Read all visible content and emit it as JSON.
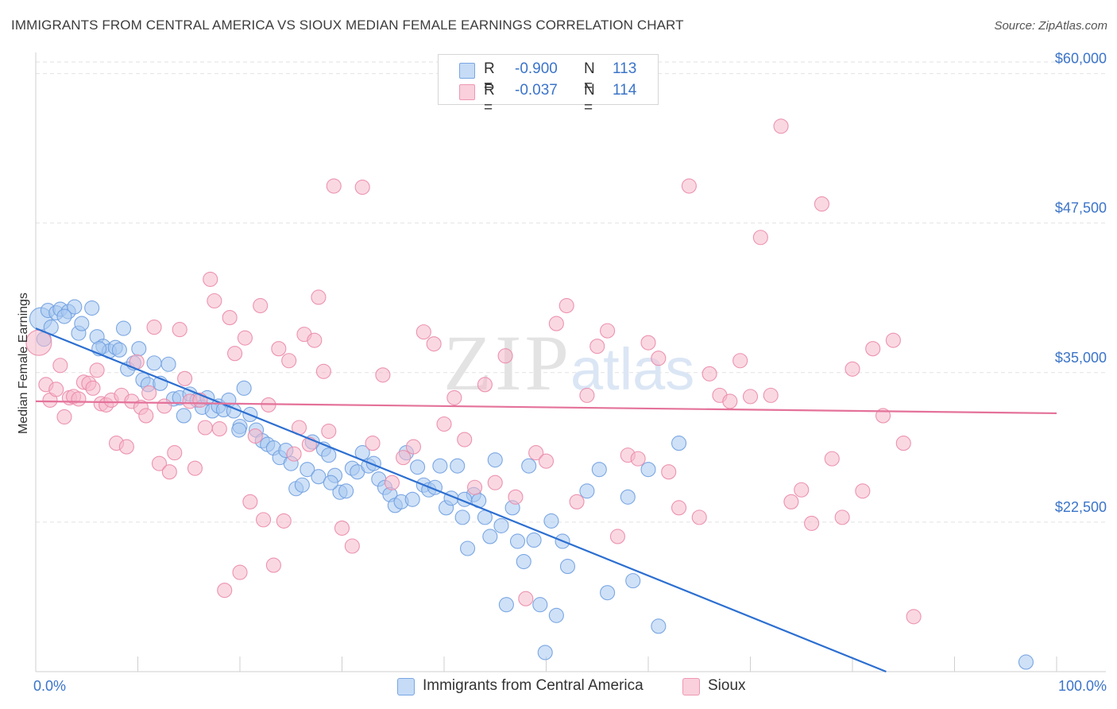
{
  "title": "IMMIGRANTS FROM CENTRAL AMERICA VS SIOUX MEDIAN FEMALE EARNINGS CORRELATION CHART",
  "source": "Source: ZipAtlas.com",
  "watermark": {
    "zip": "ZIP",
    "atlas": "atlas"
  },
  "legend": {
    "rows": [
      {
        "r_label": "R =",
        "r_value": "-0.900",
        "n_label": "N =",
        "n_value": "113",
        "color": "#a8c8f0"
      },
      {
        "r_label": "R =",
        "r_value": "-0.037",
        "n_label": "N =",
        "n_value": "114",
        "color": "#f5b8cb"
      }
    ]
  },
  "bottom_legend": [
    {
      "label": "Immigrants from Central America",
      "color": "#a8c8f0"
    },
    {
      "label": "Sioux",
      "color": "#f5b8cb"
    }
  ],
  "chart_data": {
    "type": "scatter",
    "ylabel": "Median Female Earnings",
    "x_tick_labels": [
      "0.0%",
      "100.0%"
    ],
    "y_ticks": [
      {
        "value": 22500,
        "label": "$22,500"
      },
      {
        "value": 35000,
        "label": "$35,000"
      },
      {
        "value": 47500,
        "label": "$47,500"
      },
      {
        "value": 60000,
        "label": "$60,000"
      }
    ],
    "xlim": [
      0,
      100
    ],
    "ylim": [
      10000,
      61500
    ],
    "grid": true,
    "series": [
      {
        "name": "Immigrants from Central America",
        "color": "#6f9fe0",
        "fill": "#a8c8f0",
        "trend": {
          "x": [
            0,
            83.3
          ],
          "y": [
            38700,
            10000
          ],
          "color": "#2c6fd1"
        },
        "points": [
          [
            0.5,
            39500
          ],
          [
            1.2,
            40200
          ],
          [
            1.5,
            38800
          ],
          [
            2.0,
            40000
          ],
          [
            2.4,
            40300
          ],
          [
            3.2,
            40100
          ],
          [
            3.8,
            40500
          ],
          [
            4.2,
            38300
          ],
          [
            4.5,
            39100
          ],
          [
            5.5,
            40400
          ],
          [
            6.0,
            38000
          ],
          [
            6.6,
            37200
          ],
          [
            7.2,
            36800
          ],
          [
            7.8,
            37100
          ],
          [
            8.2,
            36900
          ],
          [
            8.6,
            38700
          ],
          [
            9.0,
            35300
          ],
          [
            9.6,
            35800
          ],
          [
            10.1,
            37000
          ],
          [
            10.5,
            34400
          ],
          [
            11.0,
            34000
          ],
          [
            11.6,
            35800
          ],
          [
            12.2,
            34100
          ],
          [
            13.0,
            35700
          ],
          [
            13.5,
            32800
          ],
          [
            14.1,
            32900
          ],
          [
            14.5,
            31400
          ],
          [
            15.1,
            33200
          ],
          [
            15.8,
            32700
          ],
          [
            16.3,
            32100
          ],
          [
            16.8,
            32900
          ],
          [
            17.3,
            31800
          ],
          [
            17.9,
            32200
          ],
          [
            18.4,
            31900
          ],
          [
            18.9,
            32700
          ],
          [
            19.4,
            31800
          ],
          [
            20.0,
            30500
          ],
          [
            20.4,
            33700
          ],
          [
            21.0,
            31500
          ],
          [
            21.6,
            30200
          ],
          [
            22.2,
            29300
          ],
          [
            22.7,
            29000
          ],
          [
            23.3,
            28700
          ],
          [
            23.9,
            27900
          ],
          [
            24.5,
            28500
          ],
          [
            25.0,
            27400
          ],
          [
            25.5,
            25300
          ],
          [
            26.1,
            25600
          ],
          [
            26.6,
            26900
          ],
          [
            27.1,
            29200
          ],
          [
            27.7,
            26300
          ],
          [
            28.2,
            28600
          ],
          [
            28.7,
            28100
          ],
          [
            29.3,
            26400
          ],
          [
            29.8,
            25000
          ],
          [
            30.4,
            25100
          ],
          [
            31.0,
            27000
          ],
          [
            31.5,
            26700
          ],
          [
            32.0,
            28300
          ],
          [
            32.6,
            27200
          ],
          [
            33.1,
            27400
          ],
          [
            33.6,
            26100
          ],
          [
            34.2,
            25400
          ],
          [
            34.7,
            24800
          ],
          [
            35.2,
            23900
          ],
          [
            35.8,
            24200
          ],
          [
            36.3,
            28300
          ],
          [
            36.9,
            24400
          ],
          [
            37.4,
            27100
          ],
          [
            38.0,
            25600
          ],
          [
            38.5,
            25200
          ],
          [
            39.1,
            25400
          ],
          [
            39.6,
            27200
          ],
          [
            40.2,
            23700
          ],
          [
            40.7,
            24500
          ],
          [
            41.3,
            27200
          ],
          [
            41.8,
            22900
          ],
          [
            42.3,
            20300
          ],
          [
            42.9,
            24800
          ],
          [
            43.4,
            24300
          ],
          [
            44.0,
            22900
          ],
          [
            44.5,
            21300
          ],
          [
            45.0,
            27700
          ],
          [
            45.6,
            22200
          ],
          [
            46.1,
            15600
          ],
          [
            46.7,
            23700
          ],
          [
            47.2,
            20900
          ],
          [
            47.8,
            19200
          ],
          [
            48.3,
            27200
          ],
          [
            48.8,
            21000
          ],
          [
            49.4,
            15600
          ],
          [
            49.9,
            11600
          ],
          [
            50.5,
            22600
          ],
          [
            51.0,
            14700
          ],
          [
            51.6,
            20900
          ],
          [
            52.1,
            18800
          ],
          [
            54.0,
            25100
          ],
          [
            55.2,
            26900
          ],
          [
            56.0,
            16600
          ],
          [
            58.0,
            24600
          ],
          [
            58.5,
            17600
          ],
          [
            60.0,
            26900
          ],
          [
            61.0,
            13800
          ],
          [
            63.0,
            29100
          ],
          [
            97.0,
            10800
          ],
          [
            0.8,
            37800
          ],
          [
            2.8,
            39700
          ],
          [
            6.2,
            37000
          ],
          [
            19.9,
            30200
          ],
          [
            28.9,
            25800
          ],
          [
            42.0,
            24400
          ]
        ]
      },
      {
        "name": "Sioux",
        "color": "#ea8aa8",
        "fill": "#f5b8cb",
        "trend": {
          "x": [
            0,
            100
          ],
          "y": [
            32600,
            31600
          ],
          "color": "#e4729a"
        },
        "points": [
          [
            0.3,
            37500
          ],
          [
            1.0,
            34000
          ],
          [
            1.4,
            32700
          ],
          [
            2.0,
            33600
          ],
          [
            2.4,
            35600
          ],
          [
            2.8,
            31300
          ],
          [
            3.3,
            32900
          ],
          [
            3.7,
            33000
          ],
          [
            4.2,
            32800
          ],
          [
            4.7,
            34200
          ],
          [
            5.2,
            34100
          ],
          [
            5.6,
            33700
          ],
          [
            6.0,
            35200
          ],
          [
            6.4,
            32400
          ],
          [
            6.9,
            32300
          ],
          [
            7.4,
            32700
          ],
          [
            7.9,
            29100
          ],
          [
            8.4,
            33100
          ],
          [
            8.9,
            28800
          ],
          [
            9.4,
            32600
          ],
          [
            9.9,
            35900
          ],
          [
            10.3,
            32100
          ],
          [
            10.8,
            31400
          ],
          [
            11.1,
            33300
          ],
          [
            11.6,
            38800
          ],
          [
            12.1,
            27400
          ],
          [
            12.6,
            32200
          ],
          [
            13.1,
            26700
          ],
          [
            13.6,
            28300
          ],
          [
            14.1,
            38600
          ],
          [
            14.6,
            34500
          ],
          [
            15.1,
            32600
          ],
          [
            15.6,
            27000
          ],
          [
            16.1,
            32700
          ],
          [
            16.6,
            30400
          ],
          [
            17.1,
            42800
          ],
          [
            17.5,
            41000
          ],
          [
            18.0,
            30300
          ],
          [
            18.5,
            16800
          ],
          [
            19.0,
            39600
          ],
          [
            19.5,
            36600
          ],
          [
            20.0,
            18300
          ],
          [
            20.5,
            37900
          ],
          [
            21.0,
            24200
          ],
          [
            21.5,
            29700
          ],
          [
            22.0,
            40600
          ],
          [
            22.3,
            22700
          ],
          [
            22.8,
            32300
          ],
          [
            23.3,
            18900
          ],
          [
            23.8,
            37000
          ],
          [
            24.3,
            22600
          ],
          [
            24.8,
            36000
          ],
          [
            25.3,
            28200
          ],
          [
            25.8,
            30400
          ],
          [
            26.3,
            38200
          ],
          [
            26.8,
            29000
          ],
          [
            27.3,
            37700
          ],
          [
            27.7,
            41300
          ],
          [
            28.2,
            35100
          ],
          [
            28.7,
            30100
          ],
          [
            29.2,
            50600
          ],
          [
            30.0,
            22000
          ],
          [
            31.0,
            20500
          ],
          [
            32.0,
            50500
          ],
          [
            33.0,
            29100
          ],
          [
            34.0,
            34800
          ],
          [
            34.9,
            25800
          ],
          [
            36.0,
            27900
          ],
          [
            37.0,
            28800
          ],
          [
            38.0,
            38400
          ],
          [
            39.0,
            37400
          ],
          [
            40.0,
            30700
          ],
          [
            41.0,
            32900
          ],
          [
            42.0,
            29400
          ],
          [
            43.0,
            25400
          ],
          [
            44.0,
            34000
          ],
          [
            45.0,
            25800
          ],
          [
            46.0,
            36400
          ],
          [
            47.0,
            24600
          ],
          [
            48.0,
            16100
          ],
          [
            49.0,
            28300
          ],
          [
            50.0,
            27600
          ],
          [
            51.0,
            39100
          ],
          [
            52.0,
            40600
          ],
          [
            53.0,
            24200
          ],
          [
            54.0,
            33100
          ],
          [
            55.0,
            37200
          ],
          [
            56.0,
            38500
          ],
          [
            57.0,
            21300
          ],
          [
            58.0,
            28100
          ],
          [
            59.0,
            27800
          ],
          [
            60.0,
            37500
          ],
          [
            61.0,
            36200
          ],
          [
            62.0,
            26700
          ],
          [
            63.0,
            23700
          ],
          [
            64.0,
            50600
          ],
          [
            65.0,
            22900
          ],
          [
            66.0,
            34900
          ],
          [
            67.0,
            33100
          ],
          [
            68.0,
            32600
          ],
          [
            69.0,
            36000
          ],
          [
            70.0,
            33000
          ],
          [
            71.0,
            46300
          ],
          [
            72.0,
            33100
          ],
          [
            73.0,
            55600
          ],
          [
            74.0,
            24200
          ],
          [
            75.0,
            25200
          ],
          [
            76.0,
            22400
          ],
          [
            77.0,
            49100
          ],
          [
            78.0,
            27800
          ],
          [
            79.0,
            22900
          ],
          [
            80.0,
            35300
          ],
          [
            81.0,
            25100
          ],
          [
            82.0,
            37000
          ],
          [
            83.0,
            31400
          ],
          [
            84.0,
            37700
          ],
          [
            85.0,
            29100
          ],
          [
            86.0,
            14600
          ]
        ]
      }
    ]
  }
}
